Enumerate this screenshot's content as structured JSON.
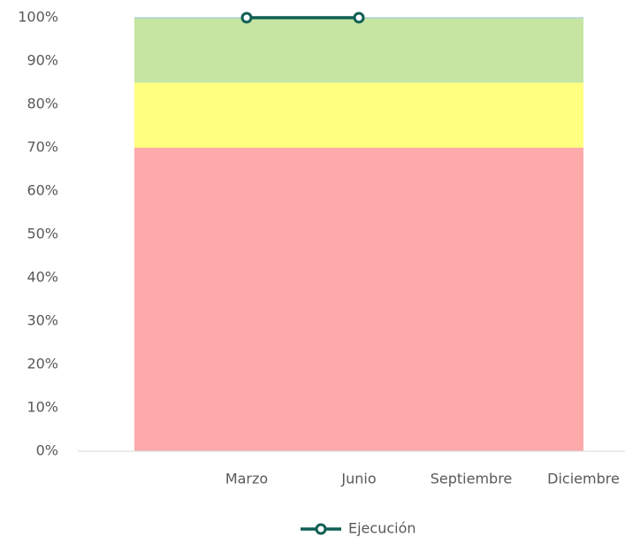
{
  "chart_data": {
    "type": "line",
    "categories": [
      null,
      "Marzo",
      "Junio",
      "Septiembre",
      "Diciembre"
    ],
    "bands": [
      {
        "color": "#ffaaaa",
        "values": [
          70,
          70,
          70,
          70,
          70
        ]
      },
      {
        "color": "#ffff80",
        "values": [
          15,
          15,
          15,
          15,
          15
        ]
      },
      {
        "color": "#c6e5a2",
        "values": [
          15,
          15,
          15,
          15,
          15
        ]
      }
    ],
    "series": [
      {
        "name": "Ejecución",
        "color": "#0f5e54",
        "values": [
          null,
          100,
          100,
          null,
          null
        ]
      }
    ],
    "ylim": [
      0,
      100
    ],
    "yticks": [
      {
        "value": 0,
        "label": "0%"
      },
      {
        "value": 10,
        "label": "10%"
      },
      {
        "value": 20,
        "label": "20%"
      },
      {
        "value": 30,
        "label": "30%"
      },
      {
        "value": 40,
        "label": "40%"
      },
      {
        "value": 50,
        "label": "50%"
      },
      {
        "value": 60,
        "label": "60%"
      },
      {
        "value": 70,
        "label": "70%"
      },
      {
        "value": 80,
        "label": "80%"
      },
      {
        "value": 90,
        "label": "90%"
      },
      {
        "value": 100,
        "label": "100%"
      }
    ],
    "legend": "bottom"
  }
}
